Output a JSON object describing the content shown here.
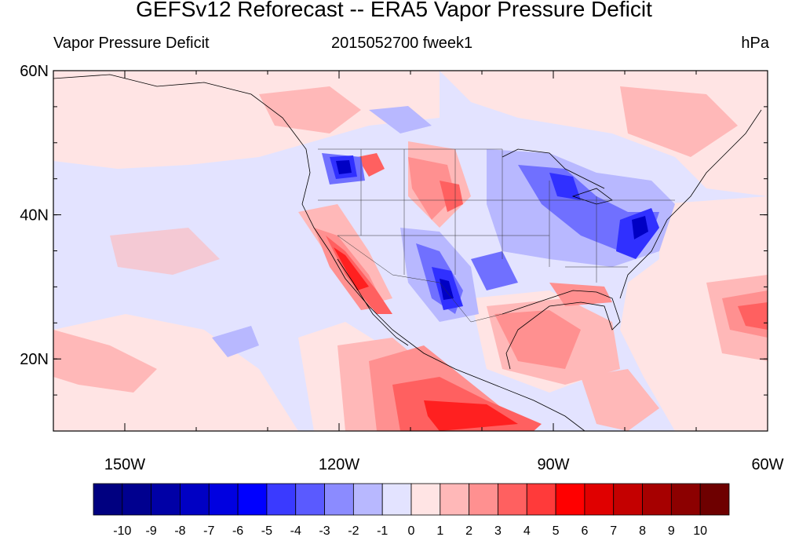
{
  "title": "GEFSv12 Reforecast -- ERA5 Vapor Pressure Deficit",
  "subtitle_left": "Vapor Pressure Deficit",
  "subtitle_center": "2015052700 fweek1",
  "subtitle_right": "hPa",
  "map": {
    "lon_range": [
      -160,
      -60
    ],
    "lat_range": [
      10,
      60
    ],
    "lat_ticks": [
      {
        "value": 60,
        "label": "60N"
      },
      {
        "value": 40,
        "label": "40N"
      },
      {
        "value": 20,
        "label": "20N"
      }
    ],
    "lon_ticks": [
      {
        "value": -150,
        "label": "150W"
      },
      {
        "value": -120,
        "label": "120W"
      },
      {
        "value": -90,
        "label": "90W"
      },
      {
        "value": -60,
        "label": "60W"
      }
    ]
  },
  "colorbar": {
    "labels": [
      "-10",
      "-9",
      "-8",
      "-7",
      "-6",
      "-5",
      "-4",
      "-3",
      "-2",
      "-1",
      "0",
      "1",
      "2",
      "3",
      "4",
      "5",
      "6",
      "7",
      "8",
      "9",
      "10"
    ],
    "colors": [
      "#000080",
      "#00008f",
      "#0000a6",
      "#0000c4",
      "#0000e0",
      "#0000ff",
      "#3a3aff",
      "#5a5aff",
      "#8b8bff",
      "#b8b8ff",
      "#e3e3ff",
      "#ffe4e4",
      "#ffb8b8",
      "#ff9090",
      "#ff6060",
      "#ff3a3a",
      "#ff0000",
      "#e00000",
      "#c40000",
      "#a60000",
      "#8c0000",
      "#6e0000"
    ]
  },
  "palette": {
    "ocean": "#e3e3ff",
    "pale_red": "#ffe4e4",
    "light_red": "#ffb8b8",
    "mid_red": "#ff9090",
    "red": "#ff6060",
    "deep_red": "#ff2020",
    "light_blue": "#b8b8ff",
    "mid_blue": "#7070ff",
    "blue": "#3030ff",
    "deep_blue": "#0000c4"
  }
}
